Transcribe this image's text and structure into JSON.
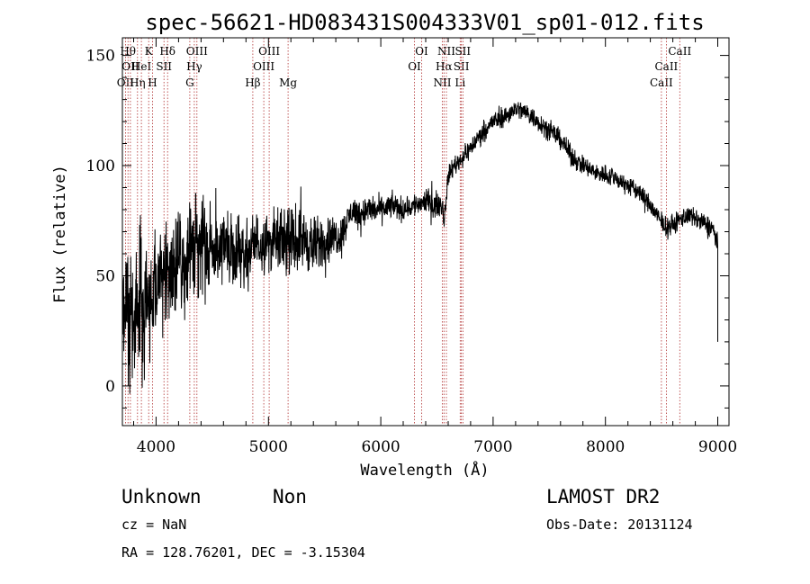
{
  "chart_data": {
    "type": "line",
    "title": "spec-56621-HD083431S004333V01_sp01-012.fits",
    "xlabel": "Wavelength (Å)",
    "ylabel": "Flux (relative)",
    "xlim": [
      3700,
      9100
    ],
    "ylim": [
      -18,
      158
    ],
    "xticks": [
      4000,
      5000,
      6000,
      7000,
      8000,
      9000
    ],
    "yticks": [
      0,
      50,
      100,
      150
    ],
    "grid": false,
    "series": [
      {
        "x": [
          3700,
          3750,
          3800,
          3850,
          3900,
          3950,
          4000,
          4050,
          4100,
          4150,
          4200,
          4250,
          4300,
          4350,
          4400,
          4450,
          4500,
          4600,
          4700,
          4800,
          4900,
          5000,
          5100,
          5200,
          5300,
          5400,
          5500,
          5600,
          5650,
          5700,
          5750,
          5800,
          5900,
          6000,
          6100,
          6200,
          6300,
          6400,
          6500,
          6550,
          6563,
          6600,
          6650,
          6700,
          6800,
          6900,
          7000,
          7100,
          7200,
          7300,
          7400,
          7500,
          7600,
          7700,
          7800,
          7900,
          8000,
          8100,
          8200,
          8300,
          8400,
          8450,
          8500,
          8550,
          8600,
          8650,
          8700,
          8800,
          8900,
          8950,
          9000,
          9050
        ],
        "y": [
          30,
          35,
          28,
          40,
          38,
          42,
          45,
          50,
          55,
          52,
          58,
          55,
          60,
          62,
          65,
          60,
          62,
          64,
          63,
          60,
          66,
          65,
          66,
          65,
          67,
          63,
          66,
          68,
          68,
          75,
          80,
          78,
          80,
          80,
          82,
          80,
          82,
          84,
          82,
          82,
          75,
          95,
          100,
          102,
          108,
          115,
          120,
          122,
          126,
          124,
          120,
          116,
          112,
          104,
          100,
          97,
          96,
          94,
          91,
          88,
          82,
          78,
          74,
          72,
          73,
          75,
          77,
          76,
          73,
          72,
          65,
          20
        ],
        "spread": [
          28,
          28,
          30,
          28,
          28,
          25,
          24,
          22,
          22,
          20,
          20,
          20,
          18,
          18,
          18,
          16,
          16,
          15,
          14,
          14,
          12,
          12,
          12,
          12,
          12,
          12,
          10,
          8,
          8,
          6,
          6,
          6,
          6,
          5,
          5,
          5,
          5,
          5,
          5,
          4,
          4,
          4,
          4,
          4,
          4,
          4,
          4,
          4,
          4,
          4,
          4,
          4,
          4,
          4,
          4,
          4,
          4,
          4,
          4,
          4,
          4,
          4,
          4,
          4,
          4,
          4,
          4,
          4,
          4,
          4,
          4,
          0
        ]
      }
    ],
    "lines": [
      {
        "x": 3727,
        "label": "OII",
        "row": 2
      },
      {
        "x": 3750,
        "label": "Hθ",
        "row": 0
      },
      {
        "x": 3771,
        "label": "OII",
        "row": 1
      },
      {
        "x": 3835,
        "label": "Hη",
        "row": 2
      },
      {
        "x": 3869,
        "label": "HeI",
        "row": 1
      },
      {
        "x": 3934,
        "label": "K",
        "row": 0
      },
      {
        "x": 3968,
        "label": "H",
        "row": 2
      },
      {
        "x": 4070,
        "label": "SII",
        "row": 1
      },
      {
        "x": 4102,
        "label": "Hδ",
        "row": 0
      },
      {
        "x": 4300,
        "label": "G",
        "row": 2
      },
      {
        "x": 4340,
        "label": "Hγ",
        "row": 1
      },
      {
        "x": 4363,
        "label": "OIII",
        "row": 0
      },
      {
        "x": 4861,
        "label": "Hβ",
        "row": 2
      },
      {
        "x": 4959,
        "label": "OIII",
        "row": 1
      },
      {
        "x": 5007,
        "label": "OIII",
        "row": 0
      },
      {
        "x": 5175,
        "label": "Mg",
        "row": 2
      },
      {
        "x": 6300,
        "label": "OI",
        "row": 1
      },
      {
        "x": 6364,
        "label": "OI",
        "row": 0
      },
      {
        "x": 6548,
        "label": "NII",
        "row": 2
      },
      {
        "x": 6563,
        "label": "Hα",
        "row": 1
      },
      {
        "x": 6584,
        "label": "NII",
        "row": 0
      },
      {
        "x": 6707,
        "label": "Li",
        "row": 2
      },
      {
        "x": 6717,
        "label": "SII",
        "row": 1
      },
      {
        "x": 6731,
        "label": "SII",
        "row": 0
      },
      {
        "x": 8498,
        "label": "CaII",
        "row": 2
      },
      {
        "x": 8542,
        "label": "CaII",
        "row": 1
      },
      {
        "x": 8662,
        "label": "CaII",
        "row": 0
      }
    ]
  },
  "info": {
    "class": "Unknown",
    "subclass": "Non",
    "survey": "LAMOST DR2",
    "cz": "cz = NaN",
    "obs_date": "Obs-Date: 20131124",
    "coords": "RA = 128.76201, DEC =  -3.15304"
  }
}
